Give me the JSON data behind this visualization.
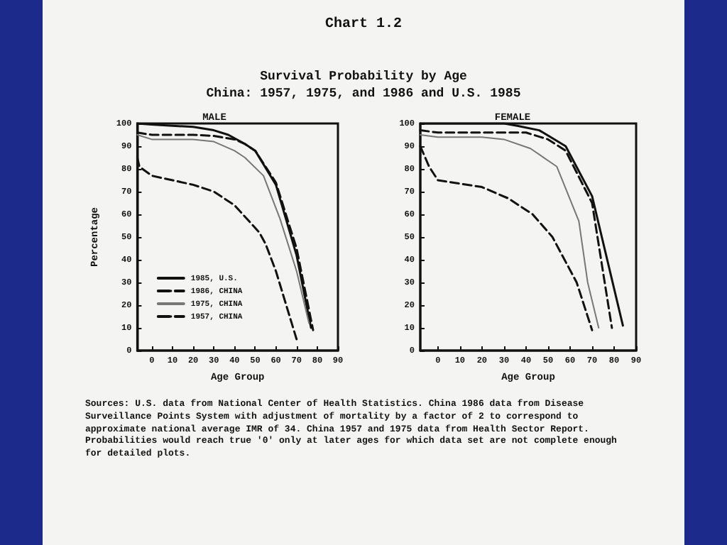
{
  "chart_data": [
    {
      "type": "line",
      "title": "MALE",
      "xlabel": "Age Group",
      "ylabel": "Percentage",
      "xlim": [
        -7,
        90
      ],
      "xticks": [
        0,
        10,
        20,
        30,
        40,
        50,
        60,
        70,
        80,
        90
      ],
      "ylim": [
        0,
        100
      ],
      "yticks": [
        0,
        10,
        20,
        30,
        40,
        50,
        60,
        70,
        80,
        90,
        100
      ],
      "grid": false,
      "marker": "none",
      "legend": "bottom left",
      "annotations": [
        "Chart 1.2",
        "Survival Probability by Age",
        "China: 1957, 1975, and 1986 and U.S. 1985",
        "Sources:  U.S. data from National Center of Health Statistics. China 1986 data from Disease Surveillance Points System with adjustment of mortality by a factor of 2 to correspond to approximate national average IMR of 34. China 1957 and 1975 data from Health Sector Report. Probabilities would reach true '0' only at later ages for which data set are not complete enough for detailed plots."
      ],
      "series": [
        {
          "name": "1985, U.S.",
          "color": "#111111",
          "line_style": "solid",
          "x": [
            -7,
            0,
            10,
            20,
            30,
            37,
            45,
            50,
            60,
            70,
            77
          ],
          "values": [
            100,
            99.5,
            99,
            98.5,
            97,
            95,
            91,
            88,
            73,
            42,
            10
          ]
        },
        {
          "name": "1986, CHINA",
          "color": "#111111",
          "line_style": "dashed",
          "x": [
            -7,
            0,
            10,
            20,
            30,
            40,
            45,
            50,
            60,
            70,
            78
          ],
          "values": [
            96,
            95,
            95,
            95,
            94.5,
            93,
            91,
            88,
            74,
            45,
            9
          ]
        },
        {
          "name": "1975, CHINA",
          "color": "#777777",
          "line_style": "solid",
          "x": [
            -7,
            0,
            10,
            20,
            30,
            40,
            45,
            54,
            62,
            70,
            76
          ],
          "values": [
            95,
            93,
            93,
            93,
            92,
            88,
            85,
            77,
            58,
            35,
            12
          ]
        },
        {
          "name": "1957, CHINA",
          "color": "#111111",
          "line_style": "dashed",
          "x": [
            -7,
            -6,
            0,
            5,
            20,
            30,
            40,
            45,
            52,
            55,
            60,
            65,
            70
          ],
          "values": [
            85,
            81,
            77,
            76,
            73,
            70,
            64,
            59,
            52,
            47,
            35,
            20,
            5
          ]
        }
      ]
    },
    {
      "type": "line",
      "title": "FEMALE",
      "xlabel": "Age Group",
      "xlim": [
        -8,
        90
      ],
      "xticks": [
        0,
        10,
        20,
        30,
        40,
        50,
        60,
        70,
        80,
        90
      ],
      "ylim": [
        0,
        100
      ],
      "yticks": [
        0,
        10,
        20,
        30,
        40,
        50,
        60,
        70,
        80,
        90,
        100
      ],
      "grid": false,
      "marker": "none",
      "legend": false,
      "series": [
        {
          "color": "#111111",
          "line_style": "solid",
          "x": [
            -8,
            0,
            10,
            20,
            30,
            36,
            46,
            58,
            70,
            84
          ],
          "values": [
            100,
            100,
            100,
            100,
            100,
            99,
            97,
            90,
            68,
            11
          ]
        },
        {
          "color": "#111111",
          "line_style": "dashed",
          "x": [
            -8,
            0,
            10,
            20,
            30,
            40,
            50,
            58,
            70,
            79
          ],
          "values": [
            97,
            96,
            96,
            96,
            96,
            96,
            93,
            88,
            65,
            10
          ]
        },
        {
          "color": "#777777",
          "line_style": "solid",
          "x": [
            -8,
            0,
            10,
            20,
            30,
            42,
            54,
            64,
            68,
            73
          ],
          "values": [
            95,
            94,
            94,
            94,
            93,
            89,
            81,
            57,
            30,
            10
          ]
        },
        {
          "color": "#111111",
          "line_style": "dashed",
          "x": [
            -8,
            -4,
            0,
            20,
            32,
            43,
            52,
            63,
            67,
            70
          ],
          "values": [
            90,
            81,
            75,
            72,
            67,
            60,
            50,
            30,
            18,
            9
          ]
        }
      ]
    }
  ]
}
